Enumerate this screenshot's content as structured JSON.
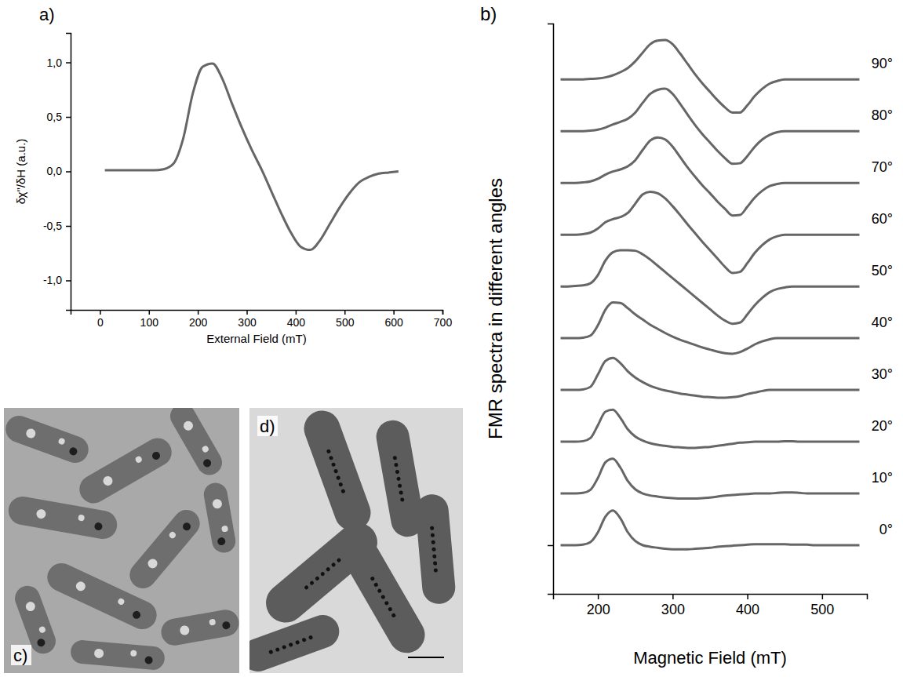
{
  "chart_data": [
    {
      "type": "line",
      "panel_label": "a)",
      "x_label": "External Field (mT)",
      "y_label": "δχ\"/δH (a.u.)",
      "color": "#666666",
      "x": [
        10,
        30,
        50,
        70,
        90,
        110,
        130,
        150,
        170,
        190,
        210,
        230,
        250,
        270,
        290,
        310,
        330,
        350,
        370,
        390,
        410,
        430,
        450,
        470,
        490,
        510,
        530,
        550,
        570,
        590,
        610
      ],
      "values": [
        0.01,
        0.01,
        0.01,
        0.01,
        0.01,
        0.01,
        0.02,
        0.07,
        0.3,
        0.72,
        0.96,
        0.99,
        0.85,
        0.62,
        0.4,
        0.2,
        0.02,
        -0.18,
        -0.38,
        -0.56,
        -0.69,
        -0.72,
        -0.63,
        -0.48,
        -0.33,
        -0.2,
        -0.1,
        -0.05,
        -0.02,
        -0.01,
        0
      ],
      "xlim": [
        -60,
        700
      ],
      "xticks": [
        0,
        100,
        200,
        300,
        400,
        500,
        600,
        700
      ],
      "ylim": [
        -1.27,
        1.27
      ],
      "yticks": [
        {
          "value": -1,
          "label": "-1,0"
        },
        {
          "value": -0.5,
          "label": "-0,5"
        },
        {
          "value": 0,
          "label": "0,0"
        },
        {
          "value": 0.5,
          "label": "0,5"
        },
        {
          "value": 1,
          "label": "1,0"
        }
      ]
    },
    {
      "type": "line",
      "panel_label": "b)",
      "x_label": "Magnetic Field (mT)",
      "y_label": "FMR spectra in different angles",
      "color": "#666666",
      "tick_labels": "x",
      "x": [
        150,
        160,
        170,
        180,
        190,
        200,
        210,
        220,
        230,
        240,
        250,
        260,
        270,
        280,
        290,
        300,
        310,
        320,
        330,
        340,
        350,
        360,
        370,
        380,
        390,
        400,
        410,
        420,
        430,
        440,
        450,
        460,
        470,
        480,
        490,
        500,
        510,
        520,
        530,
        540,
        550
      ],
      "series": [
        {
          "name": "0°",
          "offset": 0,
          "values": [
            0,
            0,
            0,
            0.01,
            0.06,
            0.25,
            0.55,
            0.67,
            0.52,
            0.25,
            0.08,
            0,
            -0.03,
            -0.05,
            -0.07,
            -0.08,
            -0.08,
            -0.08,
            -0.07,
            -0.06,
            -0.05,
            -0.03,
            -0.02,
            -0.01,
            0,
            0.01,
            0.02,
            0.02,
            0.02,
            0.02,
            0.02,
            0.01,
            0.01,
            0.01,
            0,
            0,
            0,
            0,
            0,
            0,
            0
          ]
        },
        {
          "name": "10°",
          "offset": 1,
          "values": [
            0,
            0,
            0,
            0.01,
            0.07,
            0.3,
            0.6,
            0.67,
            0.5,
            0.24,
            0.08,
            0,
            -0.04,
            -0.06,
            -0.08,
            -0.09,
            -0.1,
            -0.1,
            -0.1,
            -0.09,
            -0.08,
            -0.06,
            -0.04,
            -0.03,
            -0.02,
            -0.01,
            0,
            0,
            0,
            0.01,
            0.02,
            0.02,
            0.01,
            0,
            0,
            0,
            0,
            0,
            0,
            0,
            0
          ]
        },
        {
          "name": "20°",
          "offset": 2,
          "values": [
            0,
            0,
            0,
            0.01,
            0.07,
            0.32,
            0.58,
            0.62,
            0.46,
            0.24,
            0.1,
            0.02,
            -0.03,
            -0.06,
            -0.08,
            -0.1,
            -0.11,
            -0.12,
            -0.12,
            -0.11,
            -0.1,
            -0.08,
            -0.06,
            -0.04,
            -0.02,
            -0.01,
            0,
            0,
            0,
            0,
            0.01,
            0.01,
            0,
            0,
            0,
            0,
            0,
            0,
            0,
            0,
            0
          ]
        },
        {
          "name": "30°",
          "offset": 3,
          "values": [
            0,
            0,
            0,
            0.01,
            0.06,
            0.3,
            0.56,
            0.62,
            0.52,
            0.36,
            0.24,
            0.15,
            0.08,
            0.03,
            -0.01,
            -0.04,
            -0.07,
            -0.09,
            -0.11,
            -0.13,
            -0.14,
            -0.15,
            -0.15,
            -0.14,
            -0.12,
            -0.08,
            -0.05,
            -0.02,
            0,
            0,
            0,
            0,
            0,
            0,
            0,
            0,
            0,
            0,
            0,
            0,
            0
          ]
        },
        {
          "name": "40°",
          "offset": 4,
          "values": [
            0,
            0,
            0,
            0.01,
            0.05,
            0.25,
            0.55,
            0.69,
            0.68,
            0.58,
            0.46,
            0.36,
            0.26,
            0.18,
            0.1,
            0.03,
            -0.03,
            -0.08,
            -0.13,
            -0.18,
            -0.22,
            -0.26,
            -0.29,
            -0.3,
            -0.27,
            -0.2,
            -0.12,
            -0.06,
            -0.02,
            0,
            0,
            0,
            0,
            0,
            0,
            0,
            0,
            0,
            0,
            0,
            0
          ]
        },
        {
          "name": "50°",
          "offset": 5,
          "values": [
            0,
            0,
            0.01,
            0.02,
            0.06,
            0.22,
            0.5,
            0.66,
            0.7,
            0.7,
            0.69,
            0.62,
            0.52,
            0.4,
            0.28,
            0.16,
            0.04,
            -0.08,
            -0.2,
            -0.32,
            -0.44,
            -0.56,
            -0.66,
            -0.72,
            -0.7,
            -0.54,
            -0.36,
            -0.22,
            -0.11,
            -0.05,
            -0.02,
            0,
            0,
            0,
            0,
            0,
            0,
            0,
            0,
            0,
            0
          ]
        },
        {
          "name": "60°",
          "offset": 6,
          "values": [
            0,
            0,
            0,
            0.01,
            0.04,
            0.12,
            0.24,
            0.3,
            0.34,
            0.42,
            0.6,
            0.78,
            0.83,
            0.8,
            0.7,
            0.55,
            0.38,
            0.2,
            0.03,
            -0.14,
            -0.3,
            -0.46,
            -0.62,
            -0.74,
            -0.72,
            -0.55,
            -0.35,
            -0.2,
            -0.09,
            -0.03,
            0,
            0,
            0,
            0,
            0,
            0,
            0,
            0,
            0,
            0,
            0
          ]
        },
        {
          "name": "70°",
          "offset": 7,
          "values": [
            0,
            0,
            0,
            0.01,
            0.03,
            0.08,
            0.16,
            0.22,
            0.26,
            0.32,
            0.44,
            0.64,
            0.82,
            0.88,
            0.84,
            0.7,
            0.5,
            0.3,
            0.12,
            -0.05,
            -0.2,
            -0.36,
            -0.5,
            -0.63,
            -0.62,
            -0.46,
            -0.28,
            -0.15,
            -0.06,
            -0.02,
            0,
            0,
            0,
            0,
            0,
            0,
            0,
            0,
            0,
            0,
            0
          ]
        },
        {
          "name": "80°",
          "offset": 8,
          "values": [
            0,
            0,
            0,
            0,
            0.01,
            0.03,
            0.07,
            0.13,
            0.18,
            0.24,
            0.36,
            0.55,
            0.72,
            0.8,
            0.82,
            0.72,
            0.53,
            0.32,
            0.12,
            -0.06,
            -0.22,
            -0.38,
            -0.52,
            -0.63,
            -0.62,
            -0.48,
            -0.3,
            -0.16,
            -0.07,
            -0.02,
            0,
            0,
            0,
            0,
            0,
            0,
            0,
            0,
            0,
            0,
            0
          ]
        },
        {
          "name": "90°",
          "offset": 9,
          "values": [
            0,
            0,
            0,
            0,
            0.01,
            0.02,
            0.04,
            0.08,
            0.14,
            0.22,
            0.35,
            0.52,
            0.68,
            0.75,
            0.76,
            0.68,
            0.5,
            0.3,
            0.1,
            -0.08,
            -0.24,
            -0.4,
            -0.54,
            -0.64,
            -0.64,
            -0.5,
            -0.32,
            -0.18,
            -0.08,
            -0.03,
            0,
            0,
            0,
            0,
            0,
            0,
            0,
            0,
            0,
            0,
            0
          ]
        }
      ],
      "xlim": [
        140,
        560
      ],
      "xticks": [
        200,
        300,
        400,
        500
      ],
      "ylim": [
        -0.94,
        10.08
      ],
      "yticks": [
        0
      ]
    }
  ],
  "images": [
    {
      "label": "c)"
    },
    {
      "label": "d)"
    }
  ]
}
